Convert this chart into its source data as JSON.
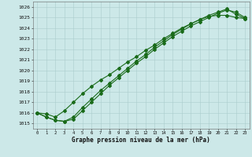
{
  "xlabel": "Graphe pression niveau de la mer (hPa)",
  "bg_color": "#cce8e8",
  "grid_color": "#aacccc",
  "line_color": "#1a6b1a",
  "xlim": [
    -0.5,
    23.5
  ],
  "ylim": [
    1014.5,
    1026.5
  ],
  "yticks": [
    1015,
    1016,
    1017,
    1018,
    1019,
    1020,
    1021,
    1022,
    1023,
    1024,
    1025,
    1026
  ],
  "xticks": [
    0,
    1,
    2,
    3,
    4,
    5,
    6,
    7,
    8,
    9,
    10,
    11,
    12,
    13,
    14,
    15,
    16,
    17,
    18,
    19,
    20,
    21,
    22,
    23
  ],
  "series1": [
    1016.0,
    1015.6,
    1015.3,
    1015.2,
    1015.4,
    1016.2,
    1017.0,
    1017.8,
    1018.6,
    1019.3,
    1020.0,
    1020.7,
    1021.3,
    1022.0,
    1022.6,
    1023.2,
    1023.7,
    1024.2,
    1024.6,
    1025.0,
    1025.4,
    1025.7,
    1025.5,
    1025.0
  ],
  "series2": [
    1016.0,
    1015.6,
    1015.3,
    1015.2,
    1015.6,
    1016.5,
    1017.3,
    1018.1,
    1018.8,
    1019.5,
    1020.2,
    1020.9,
    1021.5,
    1022.2,
    1022.8,
    1023.4,
    1023.9,
    1024.4,
    1024.8,
    1025.2,
    1025.5,
    1025.8,
    1025.3,
    1024.9
  ],
  "series3": [
    1016.0,
    1015.9,
    1015.6,
    1016.2,
    1017.0,
    1017.8,
    1018.5,
    1019.1,
    1019.6,
    1020.2,
    1020.8,
    1021.3,
    1021.9,
    1022.4,
    1023.0,
    1023.5,
    1024.0,
    1024.4,
    1024.8,
    1025.1,
    1025.2,
    1025.2,
    1025.0,
    1024.9
  ]
}
